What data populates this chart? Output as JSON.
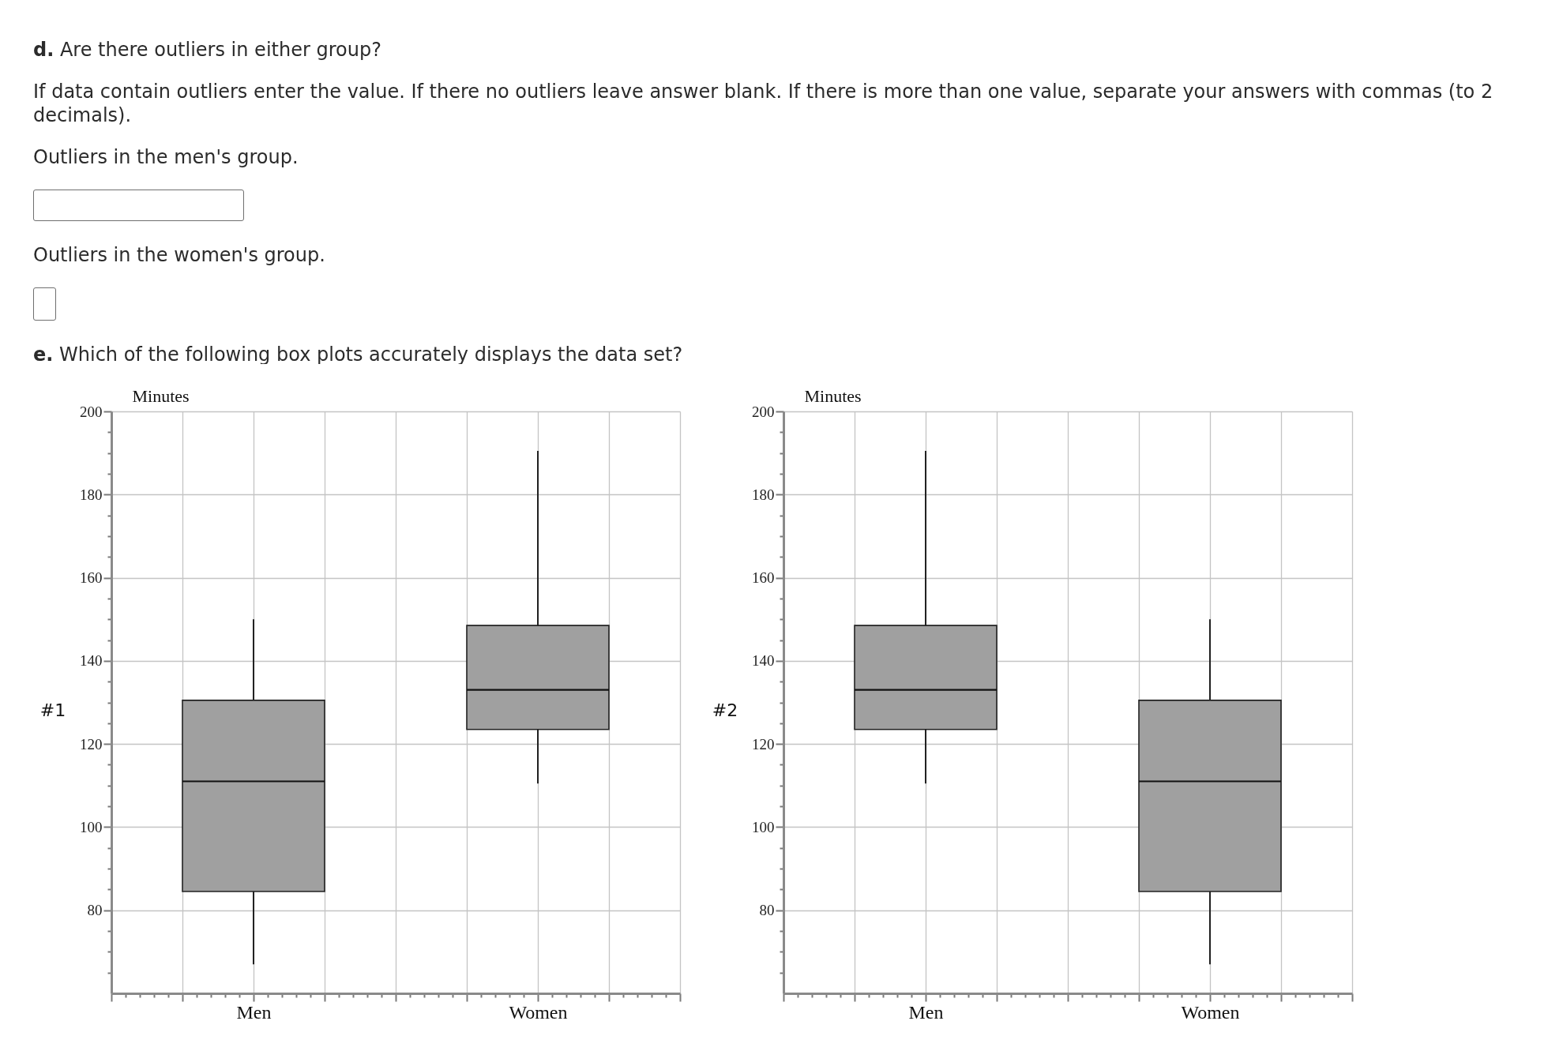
{
  "chart_data": [
    {
      "type": "other",
      "annotations": [
        "d. Are there outliers in either group?",
        "If data contain outliers enter the value. If there no outliers leave answer blank. If there is more than one value, separate your answers with commas (to 2 decimals).",
        "Outliers in the men's group.",
        "Outliers in the women's group.",
        "e. Which of the following box plots accurately displays the data set?"
      ]
    },
    {
      "type": "box",
      "title": "#1",
      "ylabel": "Minutes",
      "categories": [
        "Men",
        "Women"
      ],
      "color": "#a0a0a0",
      "boxes": [
        {
          "low": 67,
          "q1": 84.5,
          "median": 111,
          "q3": 130.5,
          "high": 150
        },
        {
          "low": 110.5,
          "q1": 123.5,
          "median": 133,
          "q3": 148.5,
          "high": 190.5
        }
      ],
      "ylim": [
        60,
        200
      ],
      "yticks": [
        {
          "value": 65,
          "label": null
        },
        {
          "value": 70,
          "label": null
        },
        {
          "value": 75,
          "label": null
        },
        80,
        {
          "value": 85,
          "label": null
        },
        {
          "value": 90,
          "label": null
        },
        {
          "value": 95,
          "label": null
        },
        100,
        {
          "value": 105,
          "label": null
        },
        {
          "value": 110,
          "label": null
        },
        {
          "value": 115,
          "label": null
        },
        120,
        {
          "value": 125,
          "label": null
        },
        {
          "value": 130,
          "label": null
        },
        {
          "value": 135,
          "label": null
        },
        140,
        {
          "value": 145,
          "label": null
        },
        {
          "value": 150,
          "label": null
        },
        {
          "value": 155,
          "label": null
        },
        160,
        {
          "value": 165,
          "label": null
        },
        {
          "value": 170,
          "label": null
        },
        {
          "value": 175,
          "label": null
        },
        180,
        {
          "value": 185,
          "label": null
        },
        {
          "value": 190,
          "label": null
        },
        {
          "value": 195,
          "label": null
        },
        200
      ],
      "grid": true
    },
    {
      "type": "box",
      "title": "#2",
      "ylabel": "Minutes",
      "categories": [
        "Men",
        "Women"
      ],
      "color": "#a0a0a0",
      "boxes": [
        {
          "low": 110.5,
          "q1": 123.5,
          "median": 133,
          "q3": 148.5,
          "high": 190.5
        },
        {
          "low": 67,
          "q1": 84.5,
          "median": 111,
          "q3": 130.5,
          "high": 150
        }
      ],
      "ylim": [
        60,
        200
      ],
      "yticks": [
        {
          "value": 65,
          "label": null
        },
        {
          "value": 70,
          "label": null
        },
        {
          "value": 75,
          "label": null
        },
        80,
        {
          "value": 85,
          "label": null
        },
        {
          "value": 90,
          "label": null
        },
        {
          "value": 95,
          "label": null
        },
        100,
        {
          "value": 105,
          "label": null
        },
        {
          "value": 110,
          "label": null
        },
        {
          "value": 115,
          "label": null
        },
        120,
        {
          "value": 125,
          "label": null
        },
        {
          "value": 130,
          "label": null
        },
        {
          "value": 135,
          "label": null
        },
        140,
        {
          "value": 145,
          "label": null
        },
        {
          "value": 150,
          "label": null
        },
        {
          "value": 155,
          "label": null
        },
        160,
        {
          "value": 165,
          "label": null
        },
        {
          "value": 170,
          "label": null
        },
        {
          "value": 175,
          "label": null
        },
        180,
        {
          "value": 185,
          "label": null
        },
        {
          "value": 190,
          "label": null
        },
        {
          "value": 195,
          "label": null
        },
        200
      ],
      "grid": true
    }
  ]
}
